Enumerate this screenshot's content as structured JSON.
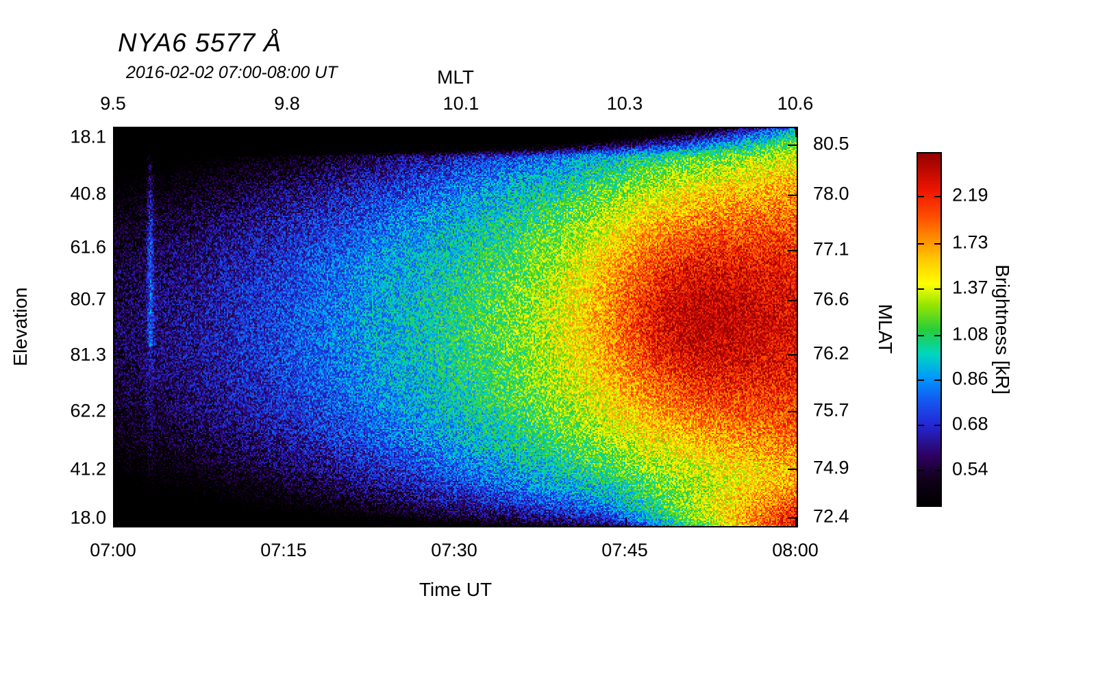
{
  "figure": {
    "title": "NYA6 5577 Å",
    "subtitle": "2016-02-02 07:00-08:00 UT"
  },
  "axes": {
    "top": {
      "label": "MLT",
      "ticks": [
        {
          "label": "9.5",
          "pos": 0.0
        },
        {
          "label": "9.8",
          "pos": 0.255
        },
        {
          "label": "10.1",
          "pos": 0.51
        },
        {
          "label": "10.3",
          "pos": 0.75
        },
        {
          "label": "10.6",
          "pos": 1.0
        }
      ]
    },
    "bottom": {
      "label": "Time UT",
      "ticks": [
        {
          "label": "07:00",
          "pos": 0.0
        },
        {
          "label": "07:15",
          "pos": 0.25
        },
        {
          "label": "07:30",
          "pos": 0.5
        },
        {
          "label": "07:45",
          "pos": 0.75
        },
        {
          "label": "08:00",
          "pos": 1.0
        }
      ]
    },
    "left": {
      "label": "Elevation",
      "ticks": [
        {
          "label": "18.1",
          "pos": 0.026
        },
        {
          "label": "40.8",
          "pos": 0.168
        },
        {
          "label": "61.6",
          "pos": 0.303
        },
        {
          "label": "80.7",
          "pos": 0.433
        },
        {
          "label": "81.3",
          "pos": 0.573
        },
        {
          "label": "62.2",
          "pos": 0.715
        },
        {
          "label": "41.2",
          "pos": 0.86
        },
        {
          "label": "18.0",
          "pos": 0.983
        }
      ]
    },
    "right": {
      "label": "MLAT",
      "ticks": [
        {
          "label": "80.5",
          "pos": 0.043
        },
        {
          "label": "78.0",
          "pos": 0.168
        },
        {
          "label": "77.1",
          "pos": 0.308
        },
        {
          "label": "76.6",
          "pos": 0.433
        },
        {
          "label": "76.2",
          "pos": 0.569
        },
        {
          "label": "75.7",
          "pos": 0.713
        },
        {
          "label": "74.9",
          "pos": 0.857
        },
        {
          "label": "72.4",
          "pos": 0.979
        }
      ]
    }
  },
  "colorbar": {
    "label": "Brightness [kR]",
    "scale": "log",
    "value_range_kR": [
      0.451,
      2.73
    ],
    "ticks": [
      {
        "label": "2.19",
        "pos": 0.122
      },
      {
        "label": "1.73",
        "pos": 0.257
      },
      {
        "label": "1.37",
        "pos": 0.386
      },
      {
        "label": "1.08",
        "pos": 0.517
      },
      {
        "label": "0.86",
        "pos": 0.643
      },
      {
        "label": "0.68",
        "pos": 0.772
      },
      {
        "label": "0.54",
        "pos": 0.9
      }
    ],
    "colormap_stops": [
      {
        "t": 0.0,
        "color": "#000000"
      },
      {
        "t": 0.07,
        "color": "#0f0019"
      },
      {
        "t": 0.14,
        "color": "#2d005f"
      },
      {
        "t": 0.23,
        "color": "#2328d7"
      },
      {
        "t": 0.3,
        "color": "#145af0"
      },
      {
        "t": 0.36,
        "color": "#0096ff"
      },
      {
        "t": 0.43,
        "color": "#00d7be"
      },
      {
        "t": 0.5,
        "color": "#28cd3c"
      },
      {
        "t": 0.57,
        "color": "#96e600"
      },
      {
        "t": 0.63,
        "color": "#ffff00"
      },
      {
        "t": 0.7,
        "color": "#ffc800"
      },
      {
        "t": 0.76,
        "color": "#ff8c00"
      },
      {
        "t": 0.83,
        "color": "#ff4600"
      },
      {
        "t": 0.9,
        "color": "#eb1400"
      },
      {
        "t": 1.0,
        "color": "#960000"
      }
    ]
  },
  "chart_data": {
    "type": "heatmap",
    "title": "NYA6 5577 Å",
    "subtitle": "2016-02-02 07:00-08:00 UT",
    "xlabel": "Time UT",
    "ylabel": "Elevation",
    "x_ticks_ut": [
      "07:00",
      "07:15",
      "07:30",
      "07:45",
      "08:00"
    ],
    "x_ticks_mlt": [
      "9.5",
      "9.8",
      "10.1",
      "10.3",
      "10.6"
    ],
    "y_ticks_elevation": [
      "18.1",
      "40.8",
      "61.6",
      "80.7",
      "81.3",
      "62.2",
      "41.2",
      "18.0"
    ],
    "y_ticks_mlat": [
      "80.5",
      "78.0",
      "77.1",
      "76.6",
      "76.2",
      "75.7",
      "74.9",
      "72.4"
    ],
    "colorbar_label": "Brightness [kR]",
    "colorbar_tick_values": [
      2.19,
      1.73,
      1.37,
      1.08,
      0.86,
      0.68,
      0.54
    ],
    "colorbar_scale": "log",
    "grid_summary_kR": {
      "note": "Approximate brightness in kR estimated from colors on a coarse grid; rows follow elevation ticks top to bottom, columns every 7.5 min from 07:00 to 08:00 UT. Brightness rises steadily with time from dark/blue (~0.5 kR) at 07:00 to red (~2.2-2.4 kR) after 07:45, brightest at mid elevations; narrow dark band along the top edge and a deep-red wedge at the bottom-right corner.",
      "columns_ut": [
        "07:00",
        "07:07",
        "07:15",
        "07:22",
        "07:30",
        "07:37",
        "07:45",
        "07:52",
        "08:00"
      ],
      "rows_elevation": [
        18.1,
        40.8,
        61.6,
        80.7,
        81.3,
        62.2,
        41.2,
        18.0
      ],
      "values": [
        [
          0.45,
          0.45,
          0.45,
          0.45,
          0.48,
          0.52,
          0.62,
          0.95,
          1.4
        ],
        [
          0.55,
          0.58,
          0.62,
          0.68,
          0.8,
          1.0,
          1.3,
          1.6,
          1.75
        ],
        [
          0.6,
          0.65,
          0.72,
          0.82,
          0.95,
          1.15,
          1.55,
          1.9,
          2.05
        ],
        [
          0.62,
          0.66,
          0.76,
          0.9,
          1.05,
          1.25,
          1.75,
          2.25,
          2.35
        ],
        [
          0.6,
          0.65,
          0.76,
          0.92,
          1.05,
          1.25,
          1.65,
          2.15,
          2.35
        ],
        [
          0.52,
          0.56,
          0.62,
          0.72,
          0.92,
          1.12,
          1.5,
          1.95,
          2.25
        ],
        [
          0.46,
          0.5,
          0.52,
          0.6,
          0.8,
          1.0,
          1.3,
          1.6,
          2.0
        ],
        [
          0.45,
          0.45,
          0.48,
          0.55,
          0.7,
          0.9,
          1.15,
          1.5,
          2.4
        ]
      ]
    }
  }
}
